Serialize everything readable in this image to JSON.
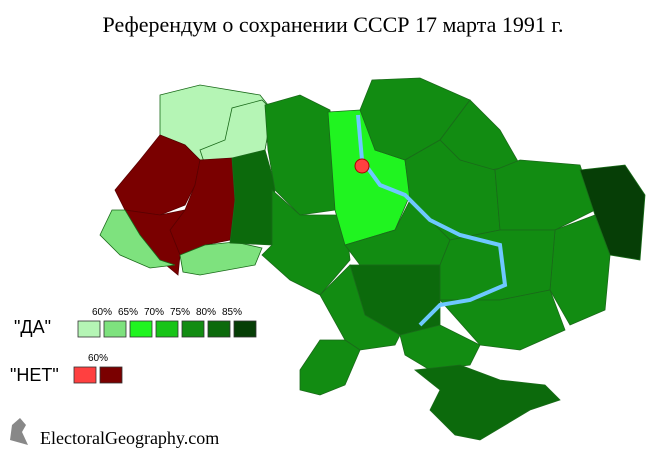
{
  "title": "Референдум о сохранении СССР 17 марта 1991 г.",
  "legend": {
    "yes": {
      "label": "\"ДА\"",
      "ticks": [
        "60%",
        "65%",
        "70%",
        "75%",
        "80%",
        "85%"
      ],
      "colors": [
        "#b5f5b5",
        "#7ee27e",
        "#20f420",
        "#18c418",
        "#128c12",
        "#0c6a0c",
        "#063e06"
      ]
    },
    "no": {
      "label": "\"НЕТ\"",
      "ticks": [
        "60%"
      ],
      "colors": [
        "#ff4040",
        "#7a0000"
      ]
    }
  },
  "footer": "ElectoralGeography.com"
}
